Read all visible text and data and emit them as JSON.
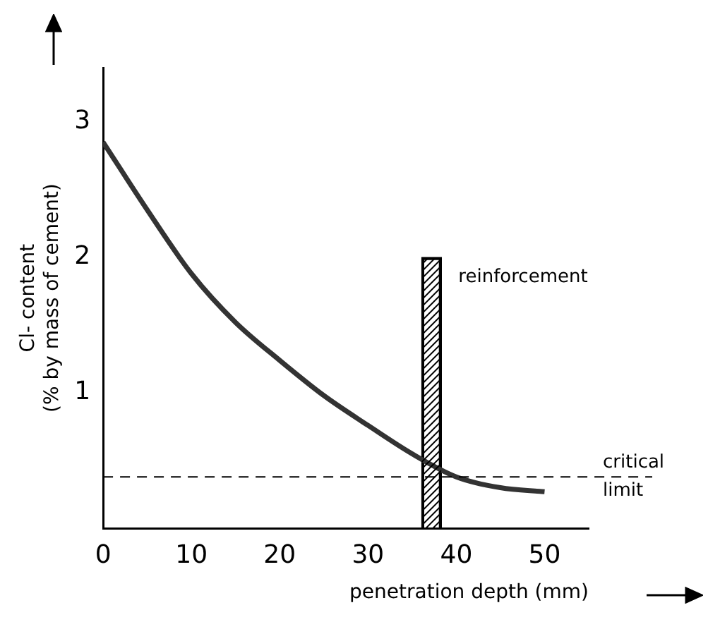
{
  "chart_data": {
    "type": "line",
    "xlabel": "penetration depth (mm)",
    "ylabel": "Cl- content\n(% by mass of cement)",
    "xlim": [
      0,
      55
    ],
    "xticks": [
      0,
      10,
      20,
      30,
      40,
      50
    ],
    "ylim": [
      0,
      3.4
    ],
    "yticks": [
      1,
      2,
      3
    ],
    "grid": false,
    "marker": "none",
    "line_style": "solid",
    "series": [
      {
        "color": "#333333",
        "x": [
          0,
          5,
          10,
          15,
          20,
          25,
          30,
          35,
          40,
          45,
          50
        ],
        "values": [
          2.85,
          2.35,
          1.88,
          1.52,
          1.24,
          0.98,
          0.76,
          0.55,
          0.38,
          0.3,
          0.27
        ]
      },
      {
        "type": "bar",
        "name": "reinforcement",
        "color": "#000000",
        "x": [
          37.2
        ],
        "values": [
          2
        ]
      }
    ],
    "ref_lines": [
      {
        "axis": "y",
        "value": 0.38,
        "label": "critical\nlimit",
        "line_style": "dashed",
        "color": "#000000"
      }
    ]
  }
}
